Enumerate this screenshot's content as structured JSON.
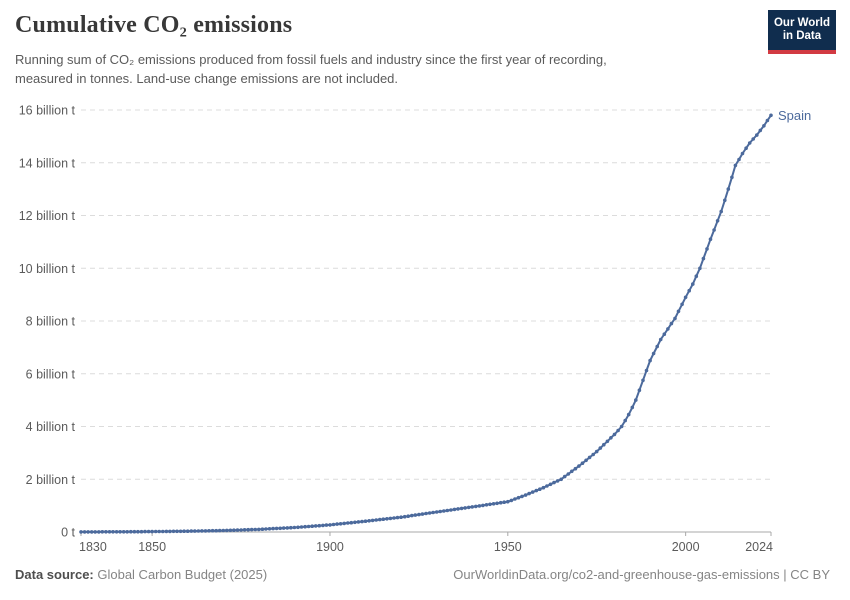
{
  "header": {
    "title": "Cumulative CO₂ emissions",
    "subtitle_line1": "Running sum of CO₂ emissions produced from fossil fuels and industry since the first year of recording,",
    "subtitle_line2": "measured in tonnes. Land-use change emissions are not included.",
    "logo": {
      "line1": "Our World",
      "line2": "in Data",
      "bg_color": "#102d4e",
      "accent_color": "#d23a42"
    }
  },
  "chart_data": {
    "type": "line",
    "title": "Cumulative CO₂ emissions",
    "entity_label": "Spain",
    "unit": "billion tonnes",
    "xlabel": "",
    "ylabel": "",
    "xlim": [
      1830,
      2024
    ],
    "ylim": [
      0,
      16
    ],
    "grid": "horizontal-dashed",
    "legend_position": "end-of-line-label",
    "series": [
      {
        "name": "Spain",
        "color": "#4c6a9c",
        "points": [
          [
            1830,
            0.003
          ],
          [
            1845,
            0.01
          ],
          [
            1860,
            0.03
          ],
          [
            1870,
            0.055
          ],
          [
            1880,
            0.1
          ],
          [
            1890,
            0.17
          ],
          [
            1900,
            0.27
          ],
          [
            1910,
            0.41
          ],
          [
            1920,
            0.56
          ],
          [
            1930,
            0.76
          ],
          [
            1940,
            0.95
          ],
          [
            1950,
            1.15
          ],
          [
            1955,
            1.4
          ],
          [
            1960,
            1.68
          ],
          [
            1965,
            2.0
          ],
          [
            1970,
            2.5
          ],
          [
            1975,
            3.05
          ],
          [
            1980,
            3.7
          ],
          [
            1982,
            4.0
          ],
          [
            1984,
            4.45
          ],
          [
            1986,
            5.0
          ],
          [
            1988,
            5.75
          ],
          [
            1990,
            6.5
          ],
          [
            1993,
            7.3
          ],
          [
            1997,
            8.1
          ],
          [
            2000,
            8.9
          ],
          [
            2002,
            9.4
          ],
          [
            2004,
            10.0
          ],
          [
            2007,
            11.1
          ],
          [
            2010,
            12.15
          ],
          [
            2012,
            13.0
          ],
          [
            2014,
            13.9
          ],
          [
            2016,
            14.35
          ],
          [
            2018,
            14.75
          ],
          [
            2020,
            15.05
          ],
          [
            2022,
            15.4
          ],
          [
            2024,
            15.8
          ]
        ]
      }
    ],
    "yticks": [
      {
        "value": 0,
        "label": "0 t"
      },
      {
        "value": 2,
        "label": "2 billion t"
      },
      {
        "value": 4,
        "label": "4 billion t"
      },
      {
        "value": 6,
        "label": "6 billion t"
      },
      {
        "value": 8,
        "label": "8 billion t"
      },
      {
        "value": 10,
        "label": "10 billion t"
      },
      {
        "value": 12,
        "label": "12 billion t"
      },
      {
        "value": 14,
        "label": "14 billion t"
      },
      {
        "value": 16,
        "label": "16 billion t"
      }
    ],
    "xticks": [
      {
        "year": 1830,
        "label": "1830",
        "anchor": "start"
      },
      {
        "year": 1850,
        "label": "1850",
        "anchor": "middle"
      },
      {
        "year": 1900,
        "label": "1900",
        "anchor": "middle"
      },
      {
        "year": 1950,
        "label": "1950",
        "anchor": "middle"
      },
      {
        "year": 2000,
        "label": "2000",
        "anchor": "middle"
      },
      {
        "year": 2024,
        "label": "2024",
        "anchor": "end"
      }
    ],
    "grid_color": "#dcdcdc",
    "axis_color": "#a8a8a8",
    "tick_label_color": "#5b5b5b"
  },
  "footer": {
    "source_label": "Data source:",
    "source_value": " Global Carbon Budget (2025)",
    "credit": "OurWorldinData.org/co2-and-greenhouse-gas-emissions | CC BY"
  }
}
